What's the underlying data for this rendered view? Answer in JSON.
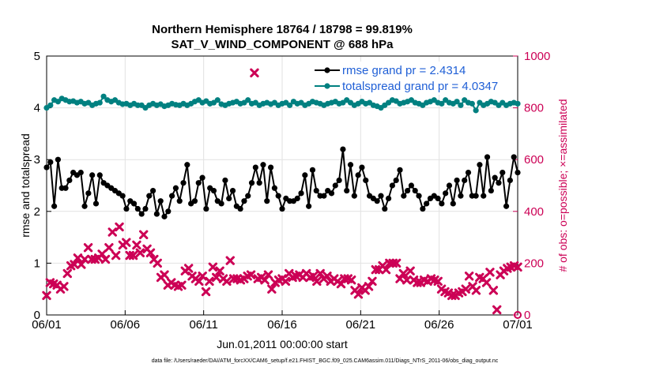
{
  "chart_data": {
    "type": "line",
    "title": "Northern Hemisphere 18764 / 18798 = 99.819%",
    "subtitle": "SAT_V_WIND_COMPONENT @ 688 hPa",
    "xlabel": "Jun.01,2011 00:00:00 start",
    "ylabel": "rmse and totalspread",
    "ylabel_right": "# of obs: o=possible; ×=assimilated",
    "footnote": "data file: /Users/raeder/DAI/ATM_forcXX/CAM6_setup/f.e21.FHIST_BGC.f09_025.CAM6assim.011/Diags_NTrS_2011-06/obs_diag_output.nc",
    "xlim": [
      0,
      30
    ],
    "ylim": [
      0,
      5
    ],
    "ylim_right": [
      0,
      1000
    ],
    "xtick_labels": [
      "06/01",
      "06/06",
      "06/11",
      "06/16",
      "06/21",
      "06/26",
      "07/01"
    ],
    "xtick_values": [
      0,
      5,
      10,
      15,
      20,
      25,
      30
    ],
    "ytick_labels": [
      "0",
      "1",
      "2",
      "3",
      "4",
      "5"
    ],
    "ytick_labels_right": [
      "0",
      "200",
      "400",
      "600",
      "800",
      "1000"
    ],
    "legend": [
      "rmse grand pr = 2.4314",
      "totalspread grand pr = 4.0347"
    ],
    "colors": {
      "rmse": "#000000",
      "spread": "#008080",
      "obs": "#cc0055",
      "legend_text": "#1f5fd6"
    },
    "series": [
      {
        "name": "rmse",
        "axis": "left",
        "values": [
          2.85,
          2.95,
          2.1,
          3.0,
          2.45,
          2.45,
          2.6,
          2.75,
          2.7,
          2.75,
          2.1,
          2.35,
          2.7,
          2.15,
          2.7,
          2.55,
          2.5,
          2.45,
          2.4,
          2.35,
          2.3,
          2.05,
          2.2,
          2.15,
          2.05,
          1.95,
          2.05,
          2.3,
          2.4,
          1.95,
          2.2,
          1.9,
          2.0,
          2.3,
          2.45,
          2.2,
          2.55,
          2.9,
          2.15,
          2.2,
          2.55,
          2.65,
          2.05,
          2.45,
          2.4,
          2.2,
          2.15,
          2.6,
          2.25,
          2.4,
          2.1,
          2.05,
          2.2,
          2.3,
          2.55,
          2.85,
          2.55,
          2.9,
          2.2,
          2.85,
          2.45,
          2.3,
          2.05,
          2.25,
          2.2,
          2.2,
          2.25,
          2.35,
          2.7,
          2.1,
          2.8,
          2.4,
          2.3,
          2.3,
          2.4,
          2.35,
          2.5,
          2.6,
          3.2,
          2.4,
          2.9,
          2.3,
          2.7,
          2.85,
          2.6,
          2.3,
          2.25,
          2.2,
          2.3,
          2.05,
          2.25,
          2.5,
          2.6,
          2.8,
          2.3,
          2.4,
          2.5,
          2.4,
          2.3,
          2.05,
          2.15,
          2.25,
          2.3,
          2.25,
          2.15,
          2.35,
          2.5,
          2.15,
          2.6,
          2.3,
          2.6,
          2.75,
          2.3,
          2.3,
          2.9,
          2.3,
          3.05,
          2.4,
          2.65,
          2.55,
          2.75,
          2.1,
          2.6,
          3.05,
          2.75
        ]
      },
      {
        "name": "totalspread",
        "axis": "left",
        "values": [
          4.0,
          4.05,
          4.15,
          4.12,
          4.18,
          4.15,
          4.12,
          4.13,
          4.1,
          4.12,
          4.08,
          4.1,
          4.05,
          4.08,
          4.1,
          4.22,
          4.15,
          4.12,
          4.15,
          4.1,
          4.07,
          4.08,
          4.05,
          4.08,
          4.05,
          4.05,
          4.0,
          4.05,
          4.08,
          4.05,
          4.07,
          4.03,
          4.05,
          4.08,
          4.06,
          4.05,
          4.08,
          4.05,
          4.08,
          4.12,
          4.15,
          4.1,
          4.13,
          4.08,
          4.1,
          4.15,
          4.07,
          4.05,
          4.08,
          4.1,
          4.12,
          4.08,
          4.1,
          4.15,
          4.08,
          4.1,
          4.05,
          4.08,
          4.1,
          4.07,
          4.1,
          4.05,
          4.08,
          4.1,
          4.05,
          4.12,
          4.08,
          4.1,
          4.05,
          4.08,
          4.12,
          4.1,
          4.08,
          4.05,
          4.08,
          4.1,
          4.12,
          4.08,
          4.1,
          4.15,
          4.1,
          4.05,
          4.08,
          4.12,
          4.08,
          4.1,
          4.05,
          4.03,
          4.0,
          4.05,
          4.1,
          4.15,
          4.13,
          4.08,
          4.1,
          4.12,
          4.15,
          4.1,
          4.08,
          4.05,
          4.1,
          4.12,
          4.15,
          4.1,
          4.08,
          4.15,
          4.1,
          4.08,
          4.12,
          4.05,
          4.15,
          4.1,
          4.08,
          3.95,
          4.1,
          4.05,
          4.08,
          4.12,
          4.1,
          4.05,
          4.1,
          4.05,
          4.08,
          4.1,
          4.08
        ]
      },
      {
        "name": "# of obs assimilated",
        "axis": "right",
        "values": [
          75,
          125,
          120,
          115,
          100,
          110,
          160,
          190,
          195,
          220,
          195,
          215,
          260,
          215,
          215,
          220,
          235,
          215,
          260,
          320,
          230,
          340,
          270,
          280,
          230,
          230,
          270,
          240,
          310,
          255,
          240,
          215,
          200,
          145,
          155,
          115,
          125,
          115,
          110,
          115,
          170,
          180,
          150,
          140,
          130,
          150,
          90,
          130,
          185,
          145,
          170,
          140,
          130,
          210,
          140,
          140,
          135,
          140,
          150,
          155,
          935,
          140,
          145,
          135,
          155,
          100,
          125,
          135,
          140,
          130,
          160,
          145,
          150,
          155,
          145,
          160,
          145,
          150,
          130,
          160,
          140,
          150,
          130,
          140,
          130,
          120,
          140,
          140,
          135,
          95,
          80,
          105,
          95,
          110,
          130,
          175,
          175,
          190,
          175,
          200,
          200,
          200,
          140,
          160,
          135,
          170,
          135,
          125,
          125,
          135,
          130,
          140,
          135,
          130,
          100,
          90,
          85,
          75,
          75,
          85,
          90,
          100,
          150,
          110,
          95,
          145,
          140,
          125,
          165,
          95,
          20,
          155,
          170,
          180,
          185,
          190,
          185
        ]
      },
      {
        "name": "# of obs possible",
        "axis": "right",
        "values": [
          0
        ]
      }
    ]
  }
}
